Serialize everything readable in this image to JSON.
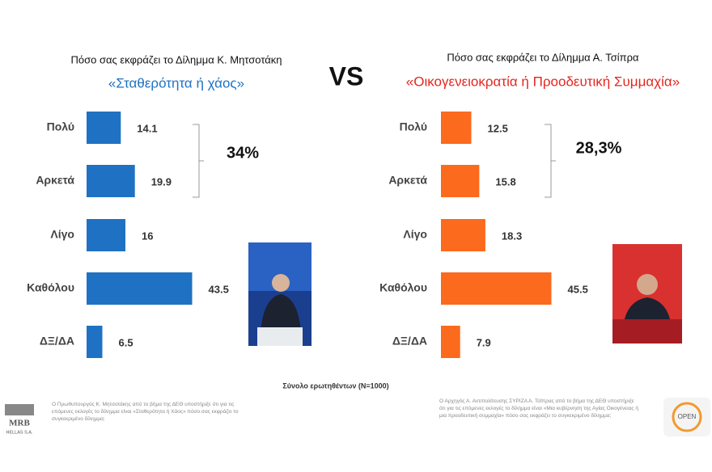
{
  "chart_data": [
    {
      "type": "hbar",
      "title": "Πόσο σας εκφράζει το Δίλημμα Κ. Μητσοτάκη",
      "subtitle": "«Σταθερότητα ή χάος»",
      "categories": [
        "Πολύ",
        "Αρκετά",
        "Λίγο",
        "Καθόλου",
        "ΔΞ/ΔΑ"
      ],
      "values": [
        14.1,
        19.9,
        16,
        43.5,
        6.5
      ],
      "color": "#1f72c3",
      "subtitle_color": "#1f72c3",
      "annotation": "34%"
    },
    {
      "type": "hbar",
      "title": "Πόσο σας εκφράζει το Δίλημμα Α. Τσίπρα",
      "subtitle": "«Οικογενειοκρατία ή Προοδευτική Συμμαχία»",
      "categories": [
        "Πολύ",
        "Αρκετά",
        "Λίγο",
        "Καθόλου",
        "ΔΞ/ΔΑ"
      ],
      "values": [
        12.5,
        15.8,
        18.3,
        45.5,
        7.9
      ],
      "color": "#fb6a1d",
      "subtitle_color": "#e3261f",
      "annotation": "28,3%"
    }
  ],
  "vs": "VS",
  "sample_note": "Σύνολο ερωτηθέντων (Ν=1000)",
  "footnotes": [
    "Ο Πρωθυπουργός Κ. Μητσοτάκης από το βήμα της ΔΕΘ υποστήριξε ότι για τις επόμενες εκλογές το δίλημμα είναι «Σταθερότητα ή Χάος» πόσο σας εκφράζει το συγκεκριμένο δίλημμα;",
    "Ο Αρχηγός Α. Αντιπολίτευσης ΣΥΡΙΖΑ Α. Τσίπρας από το βήμα της ΔΕΘ υποστήριξε ότι για τις επόμενες εκλογές το δίλημμα είναι «Μια κυβέρνηση της Αγίας Οικογένειας ή μια προοδευτική συμμαχία» πόσο σας εκφράζει το συγκεκριμένο δίλημμα;"
  ],
  "logos": {
    "left": "MRB",
    "left_sub": "HELLAS S.A.",
    "right": "OPEN"
  }
}
